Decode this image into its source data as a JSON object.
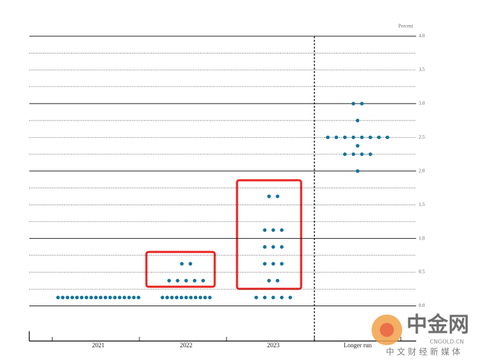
{
  "chart_data": {
    "type": "dot_plot",
    "y_axis_label": "Percent",
    "ylim": [
      -0.5,
      4.0
    ],
    "yticks": [
      {
        "value": 0,
        "label": "0.0"
      },
      0.5,
      {
        "value": 1,
        "label": "1.0"
      },
      1.5,
      {
        "value": 2,
        "label": "2.0"
      },
      2.5,
      {
        "value": 3,
        "label": "3.0"
      },
      3.5,
      {
        "value": 4,
        "label": "4.0"
      }
    ],
    "minor_yticks": [
      0.25,
      0.75,
      1.25,
      1.75,
      2.25,
      2.75,
      3.25,
      3.75
    ],
    "color": "#15739a",
    "categories": [
      "2021",
      "2022",
      "2023",
      "Longer run"
    ],
    "groups": [
      [
        {
          "value": 0.125,
          "count": 18
        }
      ],
      [
        {
          "value": 0.125,
          "count": 11
        },
        {
          "value": 0.375,
          "count": 5
        },
        {
          "value": 0.625,
          "count": 2
        }
      ],
      [
        {
          "value": 0.125,
          "count": 5
        },
        {
          "value": 0.375,
          "count": 2
        },
        {
          "value": 0.625,
          "count": 3
        },
        {
          "value": 0.875,
          "count": 3
        },
        {
          "value": 1.125,
          "count": 3
        },
        {
          "value": 1.625,
          "count": 2
        }
      ],
      [
        {
          "value": 2.0,
          "count": 1
        },
        {
          "value": 2.25,
          "count": 4
        },
        {
          "value": 2.375,
          "count": 1
        },
        {
          "value": 2.5,
          "count": 8
        },
        {
          "value": 2.75,
          "count": 1
        },
        {
          "value": 3.0,
          "count": 2
        }
      ]
    ]
  },
  "watermark": {
    "brand": "中金网",
    "site": "CNGOLD.CN",
    "tagline": "中 文 财 经 新 媒 体"
  }
}
